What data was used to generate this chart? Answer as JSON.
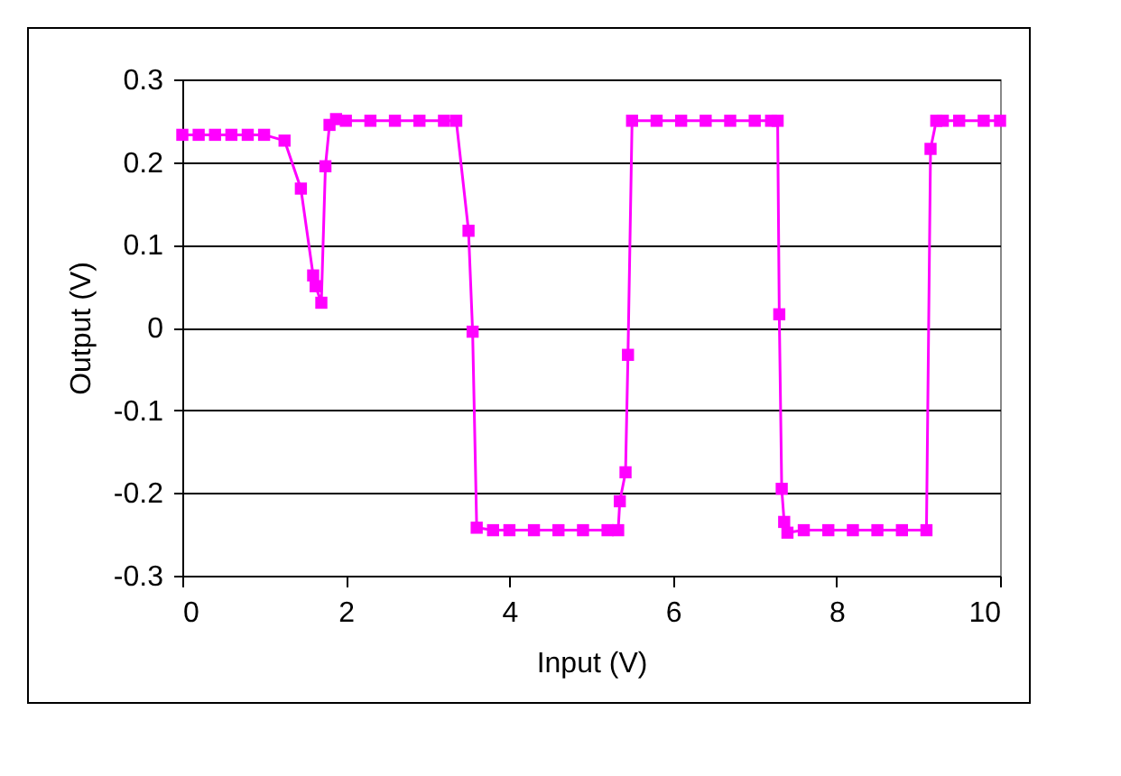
{
  "chart_data": {
    "type": "line",
    "xlabel": "Input (V)",
    "ylabel": "Output (V)",
    "xlim": [
      0,
      10
    ],
    "xticks": [
      0,
      2,
      4,
      6,
      8,
      10
    ],
    "ylim": [
      -0.3,
      0.3
    ],
    "yticks": [
      -0.3,
      -0.2,
      -0.1,
      0,
      0.1,
      0.2,
      0.3
    ],
    "grid": "y",
    "marker": "square",
    "series": [
      {
        "color": "#ff00ff",
        "x": [
          0,
          0.2,
          0.4,
          0.6,
          0.8,
          1.0,
          1.25,
          1.45,
          1.6,
          1.63,
          1.7,
          1.75,
          1.8,
          1.88,
          2.0,
          2.3,
          2.6,
          2.9,
          3.2,
          3.35,
          3.5,
          3.55,
          3.6,
          3.8,
          4.0,
          4.3,
          4.6,
          4.9,
          5.2,
          5.33,
          5.35,
          5.42,
          5.45,
          5.5,
          5.8,
          6.1,
          6.4,
          6.7,
          7.0,
          7.2,
          7.28,
          7.3,
          7.33,
          7.36,
          7.4,
          7.6,
          7.9,
          8.2,
          8.5,
          8.8,
          9.1,
          9.15,
          9.22,
          9.3,
          9.5,
          9.8,
          10
        ],
        "values": [
          0.233,
          0.233,
          0.233,
          0.233,
          0.233,
          0.233,
          0.226,
          0.168,
          0.063,
          0.05,
          0.03,
          0.195,
          0.245,
          0.252,
          0.25,
          0.25,
          0.25,
          0.25,
          0.25,
          0.25,
          0.117,
          -0.005,
          -0.242,
          -0.245,
          -0.245,
          -0.245,
          -0.245,
          -0.245,
          -0.245,
          -0.245,
          -0.21,
          -0.175,
          -0.033,
          0.25,
          0.25,
          0.25,
          0.25,
          0.25,
          0.25,
          0.25,
          0.25,
          0.016,
          -0.195,
          -0.235,
          -0.248,
          -0.245,
          -0.245,
          -0.245,
          -0.245,
          -0.245,
          -0.245,
          0.216,
          0.25,
          0.25,
          0.25,
          0.25,
          0.25
        ]
      }
    ]
  }
}
